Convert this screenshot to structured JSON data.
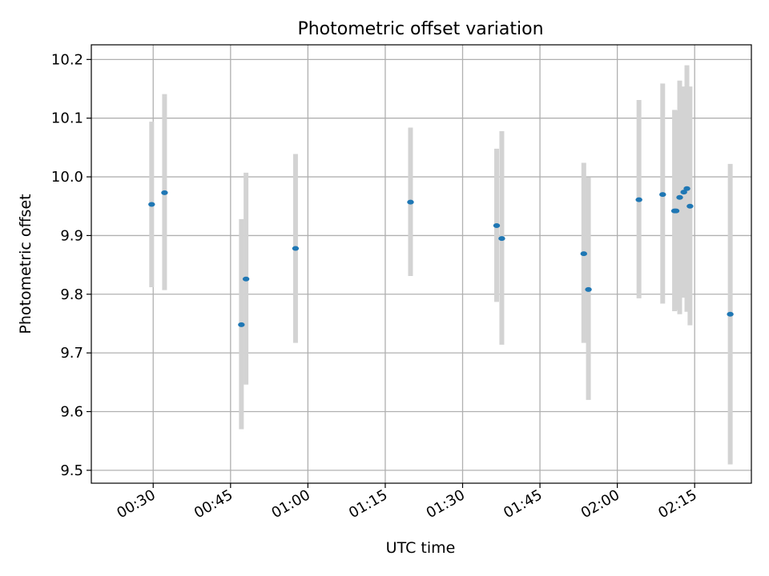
{
  "chart_data": {
    "type": "scatter",
    "title": "Photometric offset variation",
    "xlabel": "UTC time",
    "ylabel": "Photometric offset",
    "xlim": [
      "00:18:00",
      "02:26:00"
    ],
    "ylim": [
      9.478,
      10.225
    ],
    "grid": true,
    "x_ticks": [
      "00:30",
      "00:45",
      "01:00",
      "01:15",
      "01:30",
      "01:45",
      "02:00",
      "02:15"
    ],
    "y_ticks": [
      "9.5",
      "9.6",
      "9.7",
      "9.8",
      "9.9",
      "10.0",
      "10.1",
      "10.2"
    ],
    "colors": {
      "point": "#1f77b4",
      "errorbar": "#d3d3d3",
      "grid": "#b0b0b0"
    },
    "points": [
      {
        "x": "00:29:42",
        "y": 9.953,
        "yerr_low": 9.812,
        "yerr_high": 10.094
      },
      {
        "x": "00:32:12",
        "y": 9.973,
        "yerr_low": 9.807,
        "yerr_high": 10.141
      },
      {
        "x": "00:47:06",
        "y": 9.748,
        "yerr_low": 9.57,
        "yerr_high": 9.928
      },
      {
        "x": "00:48:00",
        "y": 9.826,
        "yerr_low": 9.646,
        "yerr_high": 10.007
      },
      {
        "x": "00:57:36",
        "y": 9.878,
        "yerr_low": 9.717,
        "yerr_high": 10.039
      },
      {
        "x": "01:19:54",
        "y": 9.957,
        "yerr_low": 9.831,
        "yerr_high": 10.084
      },
      {
        "x": "01:36:36",
        "y": 9.917,
        "yerr_low": 9.787,
        "yerr_high": 10.048
      },
      {
        "x": "01:37:36",
        "y": 9.895,
        "yerr_low": 9.714,
        "yerr_high": 10.078
      },
      {
        "x": "01:53:30",
        "y": 9.869,
        "yerr_low": 9.717,
        "yerr_high": 10.024
      },
      {
        "x": "01:54:24",
        "y": 9.808,
        "yerr_low": 9.62,
        "yerr_high": 9.999
      },
      {
        "x": "02:04:12",
        "y": 9.961,
        "yerr_low": 9.793,
        "yerr_high": 10.131
      },
      {
        "x": "02:08:48",
        "y": 9.97,
        "yerr_low": 9.784,
        "yerr_high": 10.159
      },
      {
        "x": "02:11:06",
        "y": 9.942,
        "yerr_low": 9.771,
        "yerr_high": 10.114
      },
      {
        "x": "02:11:24",
        "y": 9.942,
        "yerr_low": 9.773,
        "yerr_high": 10.113
      },
      {
        "x": "02:12:06",
        "y": 9.965,
        "yerr_low": 9.766,
        "yerr_high": 10.164
      },
      {
        "x": "02:12:54",
        "y": 9.974,
        "yerr_low": 9.794,
        "yerr_high": 10.154
      },
      {
        "x": "02:13:30",
        "y": 9.98,
        "yerr_low": 9.77,
        "yerr_high": 10.19
      },
      {
        "x": "02:14:06",
        "y": 9.95,
        "yerr_low": 9.747,
        "yerr_high": 10.154
      },
      {
        "x": "02:21:54",
        "y": 9.766,
        "yerr_low": 9.51,
        "yerr_high": 10.022
      }
    ]
  }
}
